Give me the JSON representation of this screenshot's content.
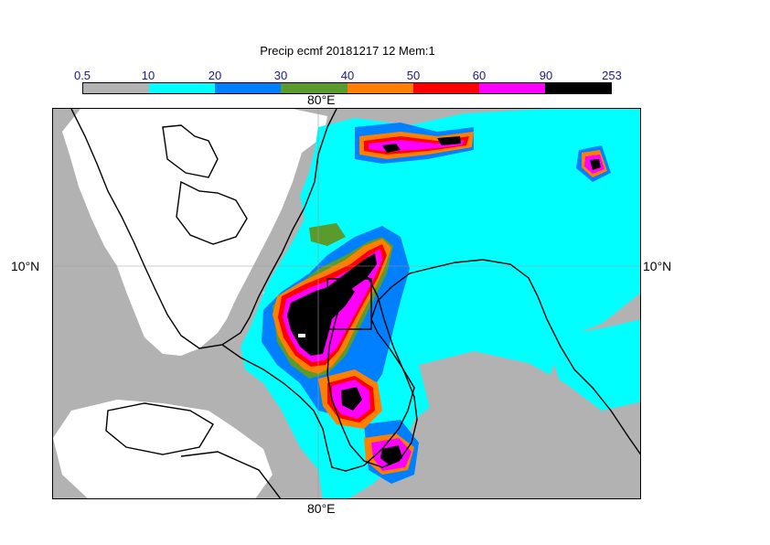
{
  "title": "Precip ecmf 20181217 12 Mem:1",
  "legend": {
    "ticks": [
      "0.5",
      "10",
      "20",
      "30",
      "40",
      "50",
      "60",
      "90",
      "253"
    ],
    "colors": [
      "#b2b2b2",
      "#00ffff",
      "#0080ff",
      "#5a9b2e",
      "#ff8000",
      "#ff0000",
      "#ff00ff",
      "#000000"
    ]
  },
  "axes": {
    "lon_top": "80°E",
    "lon_bottom": "80°E",
    "lat_left": "10°N",
    "lat_right": "10°N"
  },
  "map_colors": {
    "gray": "#b2b2b2",
    "cyan": "#00ffff",
    "blue": "#0080ff",
    "green": "#5a9b2e",
    "orange": "#ff8000",
    "red": "#ff0000",
    "magenta": "#ff00ff",
    "black": "#000000"
  }
}
